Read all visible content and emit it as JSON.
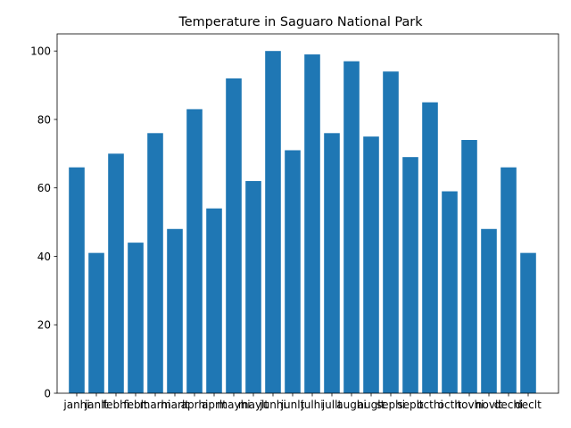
{
  "chart_data": {
    "type": "bar",
    "title": "Temperature in Saguaro National Park",
    "xlabel": "",
    "ylabel": "",
    "categories": [
      "janhi",
      "janlt",
      "febhi",
      "feblt",
      "marhi",
      "marlt",
      "aprhi",
      "aprlt",
      "mayhi",
      "maylt",
      "junhi",
      "junlt",
      "julhi",
      "jullt",
      "aughi",
      "auglt",
      "sephi",
      "seplt",
      "octhi",
      "octlt",
      "novhi",
      "novlt",
      "dechi",
      "declt"
    ],
    "values": [
      66,
      41,
      70,
      44,
      76,
      48,
      83,
      54,
      92,
      62,
      100,
      71,
      99,
      76,
      97,
      75,
      94,
      69,
      85,
      59,
      74,
      48,
      66,
      41
    ],
    "ylim": [
      0,
      105
    ],
    "yticks": [
      0,
      20,
      40,
      60,
      80,
      100
    ],
    "grid": false,
    "bar_color": "#1f77b4"
  }
}
